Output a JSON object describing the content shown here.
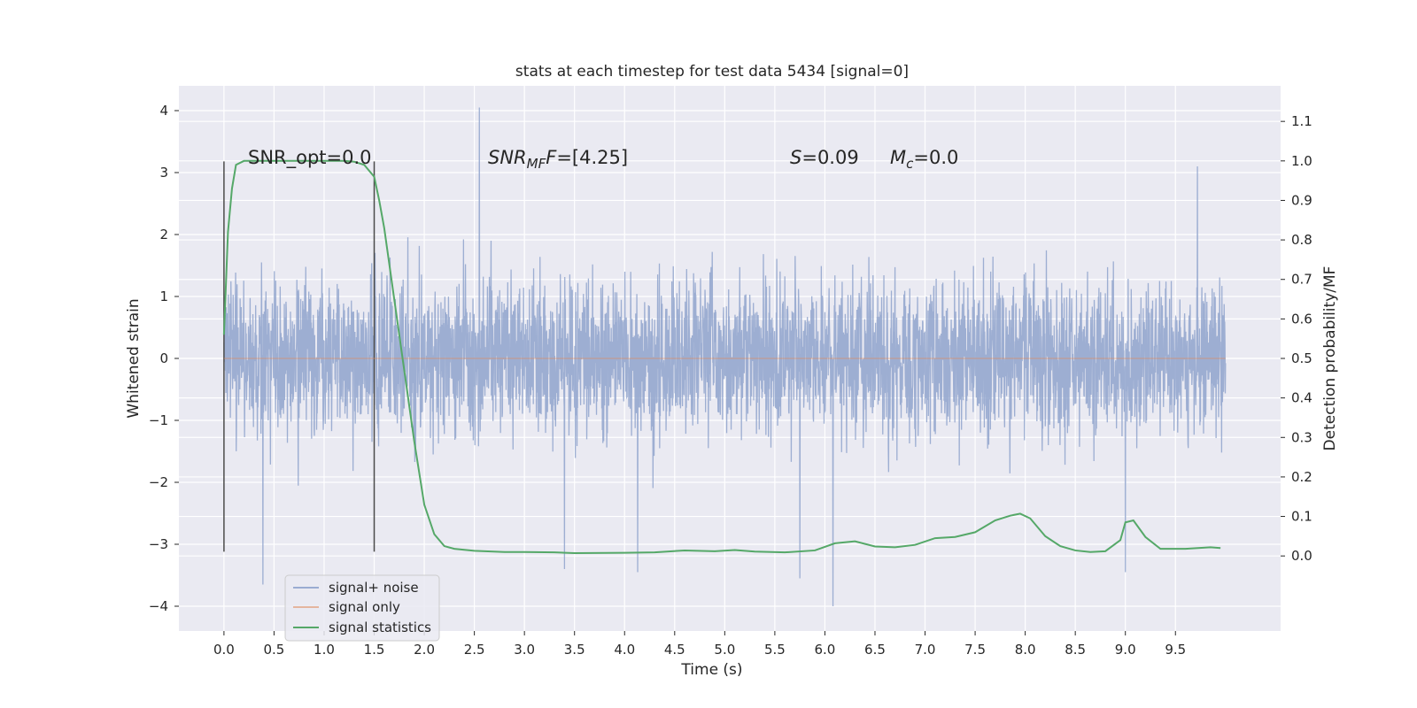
{
  "chart_data": {
    "type": "line",
    "title": "stats at each timestep for test data 5434 [signal=0]",
    "xlabel": "Time (s)",
    "ylabel": "Whitened strain",
    "y2label": "Detection probability/MF",
    "xlim": [
      -0.45,
      10.55
    ],
    "ylim": [
      -4.4,
      4.4
    ],
    "y2lim": [
      -0.19,
      1.19
    ],
    "x_ticks": [
      "0.0",
      "0.5",
      "1.0",
      "1.5",
      "2.0",
      "2.5",
      "3.0",
      "3.5",
      "4.0",
      "4.5",
      "5.0",
      "5.5",
      "6.0",
      "6.5",
      "7.0",
      "7.5",
      "8.0",
      "8.5",
      "9.0",
      "9.5"
    ],
    "y_ticks": [
      "4",
      "3",
      "2",
      "1",
      "0",
      "−1",
      "−2",
      "−3",
      "−4"
    ],
    "y2_ticks": [
      "1.1",
      "1.0",
      "0.9",
      "0.8",
      "0.7",
      "0.6",
      "0.5",
      "0.4",
      "0.3",
      "0.2",
      "0.1",
      "0.0"
    ],
    "grid": true,
    "legend_position": "lower-left",
    "annotations": {
      "snr_opt": "SNR_opt=0.0",
      "snr_mf_main": "SNR",
      "snr_mf_sub": "MF",
      "snr_mf_value": "=[4.25]",
      "s_main": "S",
      "s_value": "=0.09",
      "mc_main": "M",
      "mc_sub": "c",
      "mc_value": "=0.0"
    },
    "vertical_markers": [
      0.0,
      1.5
    ],
    "series": [
      {
        "name": "signal+ noise",
        "color": "#8fa3cd",
        "axis": "left",
        "note_shape": "dense whitened noise spanning roughly -2 to 2 with spikes up to about 4 and down to about -4",
        "x_range": [
          0.0,
          10.0
        ],
        "peaks": [
          {
            "x": 0.39,
            "y": -3.65
          },
          {
            "x": 2.55,
            "y": 4.05
          },
          {
            "x": 3.4,
            "y": -3.4
          },
          {
            "x": 4.13,
            "y": -3.45
          },
          {
            "x": 5.75,
            "y": -3.55
          },
          {
            "x": 6.08,
            "y": -4.0
          },
          {
            "x": 9.0,
            "y": -3.45
          },
          {
            "x": 9.72,
            "y": 3.1
          }
        ]
      },
      {
        "name": "signal only",
        "color": "#dd8452",
        "axis": "left",
        "values_note": "flat at 0"
      },
      {
        "name": "signal statistics",
        "color": "#55a868",
        "axis": "right",
        "x": [
          0.0,
          0.04,
          0.08,
          0.12,
          0.2,
          0.3,
          0.5,
          0.8,
          1.0,
          1.2,
          1.3,
          1.4,
          1.5,
          1.55,
          1.6,
          1.7,
          1.8,
          1.9,
          2.0,
          2.1,
          2.2,
          2.3,
          2.5,
          2.8,
          3.0,
          3.3,
          3.5,
          4.0,
          4.3,
          4.6,
          4.9,
          5.1,
          5.3,
          5.6,
          5.9,
          6.1,
          6.3,
          6.5,
          6.7,
          6.9,
          7.1,
          7.3,
          7.5,
          7.7,
          7.85,
          7.95,
          8.05,
          8.2,
          8.35,
          8.5,
          8.65,
          8.8,
          8.95,
          9.0,
          9.08,
          9.2,
          9.35,
          9.6,
          9.85,
          9.95
        ],
        "y": [
          0.56,
          0.82,
          0.93,
          0.99,
          1.0,
          1.0,
          1.0,
          1.0,
          1.0,
          1.0,
          0.998,
          0.99,
          0.96,
          0.9,
          0.83,
          0.65,
          0.47,
          0.29,
          0.13,
          0.055,
          0.025,
          0.018,
          0.013,
          0.01,
          0.01,
          0.009,
          0.007,
          0.008,
          0.009,
          0.014,
          0.012,
          0.015,
          0.011,
          0.009,
          0.014,
          0.032,
          0.037,
          0.024,
          0.022,
          0.028,
          0.045,
          0.048,
          0.06,
          0.09,
          0.102,
          0.107,
          0.095,
          0.05,
          0.025,
          0.014,
          0.01,
          0.012,
          0.04,
          0.085,
          0.09,
          0.048,
          0.018,
          0.018,
          0.022,
          0.02
        ]
      }
    ]
  }
}
